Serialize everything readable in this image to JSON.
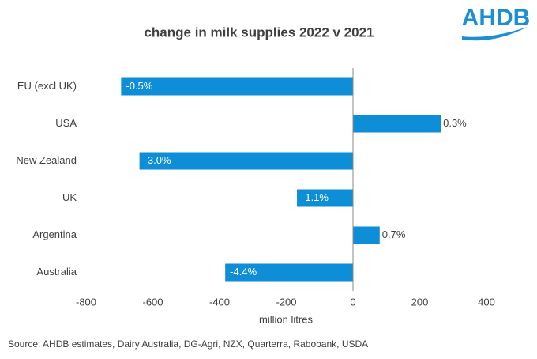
{
  "logo": "AHDB",
  "source": "Source:  AHDB estimates, Dairy Australia, DG-Agri,  NZX,  Quarterra,  Rabobank,  USDA",
  "chart_data": {
    "type": "hbar",
    "title": "change in milk supplies 2022 v 2021",
    "x_label": "million litres",
    "categories": [
      "EU (excl UK)",
      "USA",
      "New Zealand",
      "UK",
      "Argentina",
      "Australia"
    ],
    "values": [
      -695,
      263,
      -640,
      -168,
      80,
      -383
    ],
    "bar_labels": [
      "-0.5%",
      "0.3%",
      "-3.0%",
      "-1.1%",
      "0.7%",
      "-4.4%"
    ],
    "color": "#0e8ed6",
    "xlim": [
      -800,
      400
    ],
    "xticks": [
      -800,
      -600,
      -400,
      -200,
      0,
      200,
      400
    ],
    "grid": false
  }
}
